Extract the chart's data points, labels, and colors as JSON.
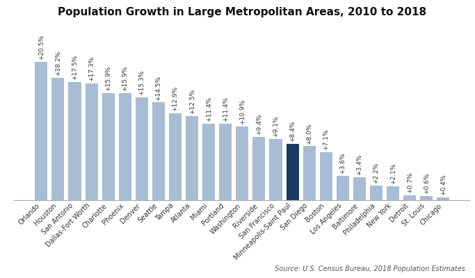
{
  "title": "Population Growth in Large Metropolitan Areas, 2010 to 2018",
  "source": "Source: U.S. Census Bureau, 2018 Population Estimates",
  "categories": [
    "Orlando",
    "Houston",
    "San Antonio",
    "Dallas-Fort Worth",
    "Charlotte",
    "Phoenix",
    "Denver",
    "Seattle",
    "Tampa",
    "Atlanta",
    "Miami",
    "Portland",
    "Washington",
    "Riverside",
    "San Francisco",
    "Minneapolis-Saint Paul",
    "San Diego",
    "Boston",
    "Los Angeles",
    "Baltimore",
    "Philadelphia",
    "New York",
    "Detroit",
    "St. Louis",
    "Chicago"
  ],
  "values": [
    20.5,
    18.2,
    17.5,
    17.3,
    15.9,
    15.9,
    15.3,
    14.5,
    12.9,
    12.5,
    11.4,
    11.4,
    10.9,
    9.4,
    9.1,
    8.4,
    8.0,
    7.1,
    3.6,
    3.4,
    2.2,
    2.1,
    0.7,
    0.6,
    0.4
  ],
  "labels": [
    "+20.5%",
    "+18.2%",
    "+17.5%",
    "+17.3%",
    "+15.9%",
    "+15.9%",
    "+15.3%",
    "+14.5%",
    "+12.9%",
    "+12.5%",
    "+11.4%",
    "+11.4%",
    "+10.9%",
    "+9.4%",
    "+9.1%",
    "+8.4%",
    "+8.0%",
    "+7.1%",
    "+3.6%",
    "+3.4%",
    "+2.2%",
    "+2.1%",
    "+0.7%",
    "+0.6%",
    "+0.4%"
  ],
  "highlight_index": 15,
  "bar_color": "#a8bcd4",
  "highlight_color": "#1a3a5c",
  "background_color": "#ffffff",
  "label_fontsize": 6.5,
  "title_fontsize": 11
}
